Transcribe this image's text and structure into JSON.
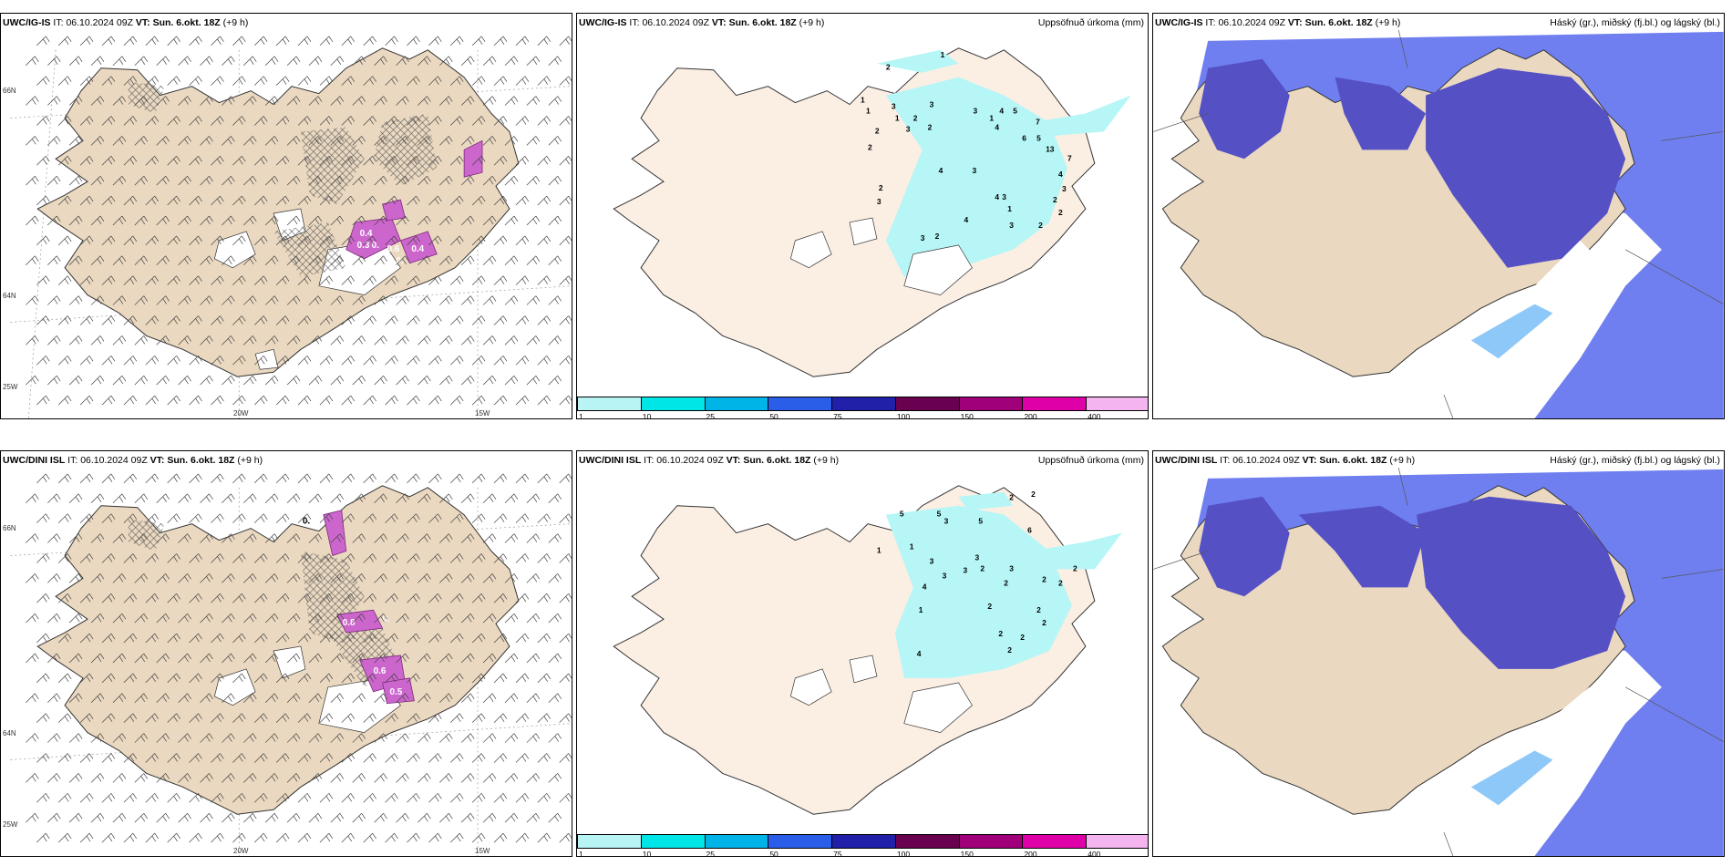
{
  "rows": [
    {
      "model": "UWC/IG-IS",
      "it_label": "IT:",
      "it_value": "06.10.2024 09Z",
      "vt_label": "VT:",
      "vt_value": "Sun. 6.okt. 18Z",
      "lead": "(+9 h)"
    },
    {
      "model": "UWC/DINI ISL",
      "it_label": "IT:",
      "it_value": "06.10.2024 09Z",
      "vt_label": "VT:",
      "vt_value": "Sun. 6.okt. 18Z",
      "lead": "(+9 h)"
    }
  ],
  "precip_title": "Uppsöfnuð úrkoma (mm)",
  "cloud_title": "Háský (gr.), miðský (fj.bl.) og lágský (bl.)",
  "colorbar": {
    "colors": [
      "#b8f4f4",
      "#00e5e5",
      "#00b4e8",
      "#2b5ee8",
      "#2020a8",
      "#6a0050",
      "#a0007a",
      "#e000a8",
      "#f4b4f0"
    ],
    "ticks": [
      "1",
      "10",
      "25",
      "50",
      "75",
      "100",
      "150",
      "200",
      "400"
    ]
  },
  "axes": {
    "lat_66": "66N",
    "lat_64": "64N",
    "lon_25": "25W",
    "lon_20": "20W",
    "lon_15": "15W"
  },
  "colors": {
    "land": "#ead8c0",
    "precip_land": "#fbefe4",
    "precip_cyan": "#b6f6f6",
    "cloud_land": "#ead8c0",
    "cloud_dark": "#5550c4",
    "cloud_mid": "#6f7ff0",
    "cloud_light": "#8ec8f8",
    "magenta": "#cc66cc",
    "purple_dark": "#7a2a7a"
  },
  "precip_labels_top": [
    "1",
    "2",
    "1",
    "1",
    "3",
    "3",
    "1",
    "2",
    "3",
    "4",
    "5",
    "1",
    "2",
    "3",
    "7",
    "6",
    "5",
    "4",
    "2",
    "2",
    "13",
    "7",
    "4",
    "3",
    "2",
    "4",
    "3",
    "1",
    "3",
    "4",
    "3",
    "2",
    "2",
    "3",
    "2",
    "4",
    "3",
    "2"
  ],
  "precip_labels_bottom": [
    "2",
    "2",
    "5",
    "5",
    "3",
    "5",
    "6",
    "1",
    "1",
    "3",
    "3",
    "3",
    "3",
    "3",
    "2",
    "4",
    "2",
    "2",
    "2",
    "2",
    "2",
    "1",
    "2",
    "4",
    "2",
    "2",
    "2",
    "2"
  ],
  "sigma_labels_top": [
    "0.4",
    "0.3",
    "0.6",
    "0.4",
    "0.",
    "0."
  ],
  "sigma_labels_bottom": [
    "0.",
    "0.8",
    "0.",
    "0.6",
    "0.5"
  ]
}
